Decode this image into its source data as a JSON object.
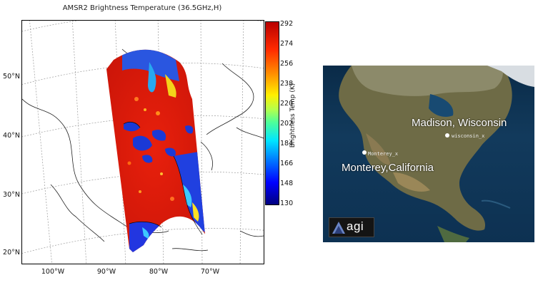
{
  "left_map": {
    "title": "AMSR2 Brightness Temperature (36.5GHz,H)",
    "lat_labels": [
      "50°N",
      "40°N",
      "30°N",
      "20°N"
    ],
    "lon_labels": [
      "100°W",
      "90°W",
      "80°W",
      "70°W"
    ],
    "colorbar": {
      "label": "Brightness Temp (K)",
      "ticks": [
        "292",
        "274",
        "256",
        "238",
        "220",
        "202",
        "184",
        "166",
        "148",
        "130"
      ],
      "min": 130,
      "max": 292
    },
    "colors": {
      "land_hot": "#e02010",
      "water_cold": "#1030d0",
      "coast": "#222222",
      "grid": "#9a9a9a"
    }
  },
  "right_map": {
    "cities": [
      {
        "label": "Madison, Wisconsin",
        "marker_label": "wisconsin_x"
      },
      {
        "label": "Monterey,California",
        "marker_label": "Monterey_x"
      }
    ],
    "logo_text": "agi",
    "colors": {
      "ocean": "#0f3858",
      "land": "#6b6a48",
      "ice": "#d8dde2"
    }
  }
}
